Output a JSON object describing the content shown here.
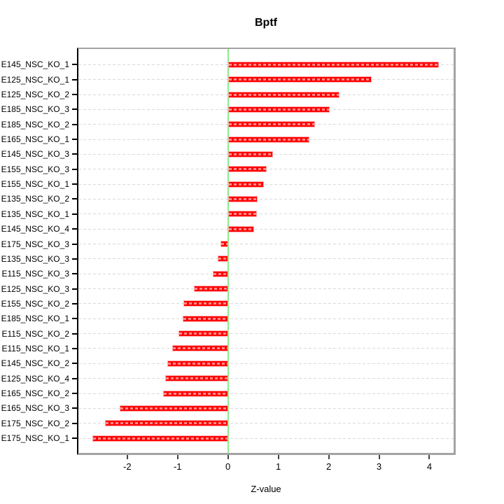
{
  "chart_data": {
    "type": "bar",
    "orientation": "horizontal",
    "title": "Bptf",
    "xlabel": "Z-value",
    "categories": [
      "E145_NSC_KO_1",
      "E125_NSC_KO_1",
      "E125_NSC_KO_2",
      "E185_NSC_KO_3",
      "E185_NSC_KO_2",
      "E165_NSC_KO_1",
      "E145_NSC_KO_3",
      "E155_NSC_KO_3",
      "E155_NSC_KO_1",
      "E135_NSC_KO_2",
      "E135_NSC_KO_1",
      "E145_NSC_KO_4",
      "E175_NSC_KO_3",
      "E135_NSC_KO_3",
      "E115_NSC_KO_3",
      "E125_NSC_KO_3",
      "E155_NSC_KO_2",
      "E185_NSC_KO_1",
      "E115_NSC_KO_2",
      "E115_NSC_KO_1",
      "E145_NSC_KO_2",
      "E125_NSC_KO_4",
      "E165_NSC_KO_2",
      "E165_NSC_KO_3",
      "E175_NSC_KO_2",
      "E175_NSC_KO_1"
    ],
    "values": [
      4.19,
      2.86,
      2.21,
      2.02,
      1.73,
      1.62,
      0.9,
      0.77,
      0.72,
      0.59,
      0.57,
      0.52,
      -0.15,
      -0.2,
      -0.3,
      -0.68,
      -0.88,
      -0.9,
      -0.98,
      -1.11,
      -1.21,
      -1.25,
      -1.29,
      -2.15,
      -2.44,
      -2.69
    ],
    "x_ticks": [
      -2,
      -1,
      0,
      1,
      2,
      3,
      4
    ],
    "xlim": [
      -2.97,
      4.48
    ],
    "grid": true,
    "legend": "none",
    "zero_line_value": 0,
    "colors": {
      "bar": "#FF0000",
      "bar_edge": "#FFABAB",
      "bar_stripe": "#FF8A8A",
      "grid": "#D9D9D9",
      "zero_line": "#8BEB8B",
      "axis_gray": "#A3A3A3",
      "axis_left": "#000000",
      "text": "#000000"
    }
  }
}
